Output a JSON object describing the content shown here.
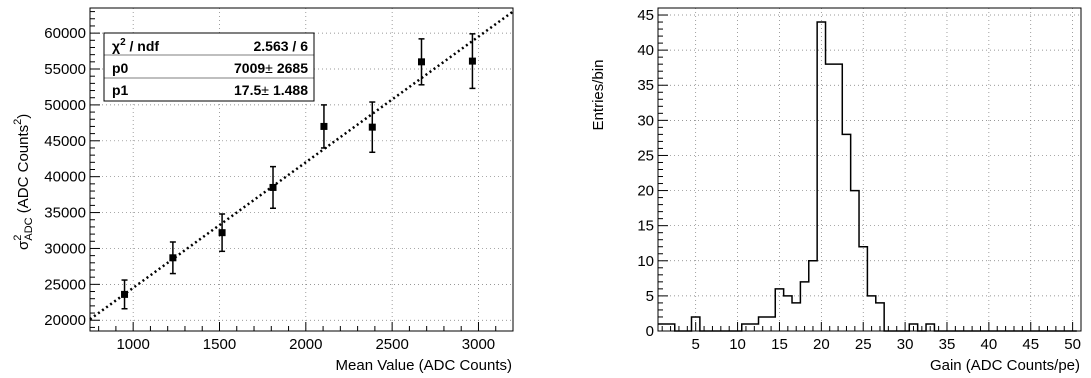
{
  "chart_data": [
    {
      "type": "scatter",
      "xlabel": "Mean Value (ADC Counts)",
      "ylabel_main": "σ",
      "ylabel_sup": "2",
      "ylabel_sub": "ADC",
      "ylabel_unit": " (ADC Counts",
      "ylabel_unit_sup": "2",
      "ylabel_close": ")",
      "xlim": [
        750,
        3200
      ],
      "ylim": [
        18500,
        63500
      ],
      "xticks": [
        1000,
        1500,
        2000,
        2500,
        3000
      ],
      "xtick_labels": [
        "1000",
        "1500",
        "2000",
        "2500",
        "3000"
      ],
      "yticks": [
        20000,
        25000,
        30000,
        35000,
        40000,
        45000,
        50000,
        55000,
        60000
      ],
      "ytick_labels": [
        "20000",
        "25000",
        "30000",
        "35000",
        "40000",
        "45000",
        "50000",
        "55000",
        "60000"
      ],
      "grid": true,
      "points": [
        {
          "x": 950,
          "y": 23600,
          "err": 2000
        },
        {
          "x": 1230,
          "y": 28700,
          "err": 2200
        },
        {
          "x": 1515,
          "y": 32200,
          "err": 2600
        },
        {
          "x": 1810,
          "y": 38500,
          "err": 2900
        },
        {
          "x": 2105,
          "y": 47000,
          "err": 3000
        },
        {
          "x": 2385,
          "y": 46900,
          "err": 3500
        },
        {
          "x": 2670,
          "y": 56000,
          "err": 3200
        },
        {
          "x": 2965,
          "y": 56100,
          "err": 3800
        }
      ],
      "fit": {
        "type": "linear",
        "p0": 7009,
        "p1": 17.5
      },
      "stats_box": {
        "rows": [
          {
            "label": "ndf",
            "chi_symbol": "χ",
            "chi_sup": "2",
            "sep": " / ",
            "value": "2.563 / 6"
          },
          {
            "label": "p0",
            "value": "7009",
            "pm": "±",
            "err": "2685"
          },
          {
            "label": "p1",
            "value": "17.5",
            "pm": "±",
            "err": "1.488"
          }
        ],
        "placement": "top-left"
      }
    },
    {
      "type": "histogram",
      "xlabel": "Gain (ADC Counts/pe)",
      "ylabel": "Entries/bin",
      "xlim": [
        0.5,
        51
      ],
      "ylim": [
        0,
        46
      ],
      "xticks": [
        5,
        10,
        15,
        20,
        25,
        30,
        35,
        40,
        45,
        50
      ],
      "xtick_labels": [
        "5",
        "10",
        "15",
        "20",
        "25",
        "30",
        "35",
        "40",
        "45",
        "50"
      ],
      "yticks": [
        0,
        5,
        10,
        15,
        20,
        25,
        30,
        35,
        40,
        45
      ],
      "ytick_labels": [
        "0",
        "5",
        "10",
        "15",
        "20",
        "25",
        "30",
        "35",
        "40",
        "45"
      ],
      "grid": true,
      "bin_edges_start": 0.5,
      "bin_width": 1,
      "counts": [
        1,
        1,
        0,
        0,
        2,
        0,
        0,
        0,
        0,
        0,
        1,
        1,
        2,
        2,
        6,
        5,
        4,
        7,
        10,
        44,
        38,
        38,
        28,
        20,
        12,
        5,
        4,
        0,
        0,
        0,
        1,
        0,
        1,
        0,
        0,
        0,
        0,
        0,
        0,
        0,
        0,
        0,
        0,
        0,
        0,
        0,
        0,
        0,
        0,
        0
      ]
    }
  ]
}
